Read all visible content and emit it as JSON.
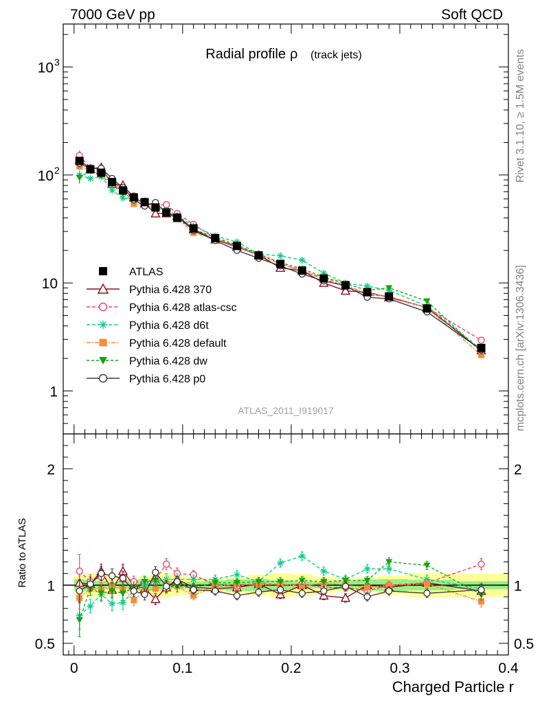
{
  "header": {
    "left": "7000 GeV pp",
    "right": "Soft QCD"
  },
  "side": {
    "top": "Rivet 3.1.10, ≥ 1.5M events",
    "bottom": "mcplots.cern.ch [arXiv:1306.3436]"
  },
  "main": {
    "title": "Radial profile",
    "title_sym": "ρ",
    "title_sub": "(track jets)",
    "analysis_id": "ATLAS_2011_I919017",
    "yticks": [
      {
        "v": 1,
        "label": "1"
      },
      {
        "v": 10,
        "label": "10"
      },
      {
        "v": 100,
        "label": "10",
        "exp": "2"
      },
      {
        "v": 1000,
        "label": "10",
        "exp": "3"
      }
    ]
  },
  "ratio": {
    "ylabel": "Ratio to ATLAS",
    "yticks": [
      {
        "v": 0.5,
        "label": "0.5"
      },
      {
        "v": 1,
        "label": "1"
      },
      {
        "v": 2,
        "label": "2"
      }
    ]
  },
  "xaxis": {
    "label": "Charged Particle r",
    "ticks": [
      {
        "v": 0,
        "label": "0"
      },
      {
        "v": 0.1,
        "label": "0.1"
      },
      {
        "v": 0.2,
        "label": "0.2"
      },
      {
        "v": 0.3,
        "label": "0.3"
      },
      {
        "v": 0.4,
        "label": "0.4"
      }
    ]
  },
  "chart_data": {
    "type": "line",
    "title": "Radial profile ρ (track jets)",
    "xlabel": "Charged Particle r",
    "ylabel_ratio": "Ratio to ATLAS",
    "xlim": [
      -0.01,
      0.4
    ],
    "ylim": [
      0.4,
      2500
    ],
    "ylog": true,
    "ratio_ylim": [
      0.4,
      2.3
    ],
    "legend_position": "left",
    "x": [
      0.005,
      0.015,
      0.025,
      0.035,
      0.045,
      0.055,
      0.065,
      0.075,
      0.085,
      0.095,
      0.11,
      0.13,
      0.15,
      0.17,
      0.19,
      0.21,
      0.23,
      0.25,
      0.27,
      0.29,
      0.325,
      0.375
    ],
    "data": {
      "name": "ATLAS",
      "values": [
        135,
        113,
        105,
        86,
        72,
        62,
        56,
        50,
        45,
        40,
        32,
        26,
        22,
        18,
        15,
        13,
        11,
        9.5,
        8.2,
        7.5,
        5.8,
        2.5
      ],
      "band_green": 0.04,
      "band_yellow": 0.08
    },
    "series": [
      {
        "name": "Pythia 6.428 370",
        "color": "#8b0a1a",
        "dash": "",
        "marker": "triangle-open",
        "ratio": [
          1.02,
          1.01,
          1.12,
          0.96,
          1.12,
          1.0,
          0.97,
          0.88,
          0.98,
          1.05,
          0.98,
          0.97,
          0.98,
          1.01,
          0.92,
          1.0,
          0.91,
          0.89,
          1.0,
          0.98,
          1.02,
          0.95
        ],
        "err": [
          0.08,
          0.05,
          0.05,
          0.05,
          0.05,
          0.04,
          0.04,
          0.04,
          0.04,
          0.04,
          0.03,
          0.03,
          0.03,
          0.03,
          0.03,
          0.03,
          0.03,
          0.03,
          0.03,
          0.03,
          0.03,
          0.04
        ]
      },
      {
        "name": "Pythia 6.428 atlas-csc",
        "color": "#e8436b",
        "dash": "5,3",
        "marker": "circle-open",
        "ratio": [
          1.12,
          1.03,
          1.07,
          0.99,
          1.05,
          1.03,
          1.02,
          1.05,
          1.18,
          1.1,
          1.09,
          1.0,
          0.99,
          1.02,
          1.0,
          1.01,
          0.98,
          0.98,
          0.95,
          1.0,
          1.02,
          1.18
        ],
        "err": [
          0.12,
          0.05,
          0.05,
          0.05,
          0.05,
          0.04,
          0.04,
          0.04,
          0.04,
          0.04,
          0.03,
          0.03,
          0.03,
          0.03,
          0.03,
          0.03,
          0.03,
          0.03,
          0.03,
          0.03,
          0.03,
          0.04
        ]
      },
      {
        "name": "Pythia 6.428 d6t",
        "color": "#11c98a",
        "dash": "5,3",
        "marker": "star",
        "ratio": [
          0.74,
          0.82,
          0.92,
          0.84,
          0.85,
          0.95,
          1.0,
          1.03,
          1.05,
          1.05,
          1.05,
          1.05,
          1.09,
          1.03,
          1.19,
          1.25,
          1.12,
          1.05,
          1.14,
          1.14,
          1.05,
          0.97
        ],
        "err": [
          0.1,
          0.05,
          0.05,
          0.05,
          0.05,
          0.04,
          0.04,
          0.04,
          0.04,
          0.04,
          0.03,
          0.03,
          0.03,
          0.03,
          0.03,
          0.03,
          0.03,
          0.03,
          0.03,
          0.03,
          0.03,
          0.04
        ]
      },
      {
        "name": "Pythia 6.428 default",
        "color": "#f78b38",
        "dash": "6,2,2,2",
        "marker": "square",
        "ratio": [
          0.89,
          0.97,
          0.96,
          0.98,
          0.97,
          0.87,
          0.95,
          0.97,
          1.0,
          0.99,
          0.91,
          0.99,
          1.01,
          1.0,
          1.01,
          0.99,
          1.02,
          1.0,
          0.98,
          1.0,
          1.01,
          0.86
        ],
        "err": [
          0.08,
          0.05,
          0.05,
          0.05,
          0.05,
          0.04,
          0.04,
          0.04,
          0.04,
          0.04,
          0.03,
          0.03,
          0.03,
          0.03,
          0.03,
          0.03,
          0.03,
          0.03,
          0.03,
          0.03,
          0.03,
          0.04
        ]
      },
      {
        "name": "Pythia 6.428 dw",
        "color": "#13a40f",
        "dash": "4,3",
        "marker": "triangle-down",
        "ratio": [
          0.7,
          0.97,
          0.93,
          0.95,
          0.93,
          0.98,
          1.03,
          1.04,
          0.98,
          0.99,
          0.98,
          1.02,
          1.02,
          1.03,
          1.03,
          1.04,
          1.03,
          1.04,
          1.04,
          1.2,
          1.17,
          0.92
        ],
        "err": [
          0.12,
          0.05,
          0.05,
          0.05,
          0.05,
          0.04,
          0.04,
          0.04,
          0.04,
          0.04,
          0.03,
          0.03,
          0.03,
          0.03,
          0.03,
          0.03,
          0.03,
          0.03,
          0.03,
          0.03,
          0.03,
          0.04
        ]
      },
      {
        "name": "Pythia 6.428 p0",
        "color": "#3b3b3b",
        "dash": "",
        "marker": "circle-open",
        "ratio": [
          0.95,
          1.01,
          1.1,
          1.08,
          1.06,
          0.95,
          0.92,
          1.11,
          0.99,
          1.03,
          0.96,
          0.95,
          0.91,
          0.94,
          0.96,
          0.93,
          0.95,
          0.99,
          0.9,
          0.95,
          0.93,
          0.96
        ],
        "err": [
          0.08,
          0.05,
          0.05,
          0.05,
          0.05,
          0.04,
          0.04,
          0.04,
          0.04,
          0.04,
          0.03,
          0.03,
          0.03,
          0.03,
          0.03,
          0.03,
          0.03,
          0.03,
          0.03,
          0.03,
          0.03,
          0.04
        ]
      }
    ]
  }
}
